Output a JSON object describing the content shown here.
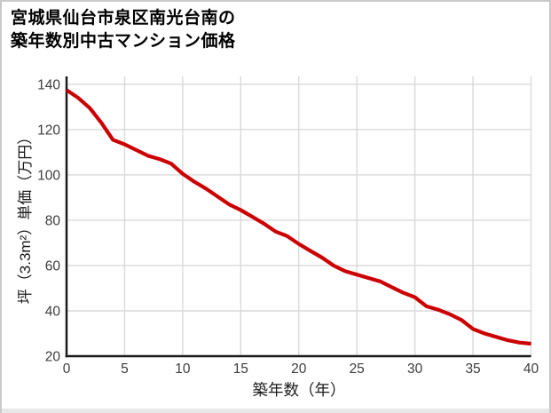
{
  "page": {
    "background": "#ffffff",
    "border_color": "#c9c9c9",
    "bottom_strip_color": "#e8e8e8"
  },
  "chart_data": {
    "type": "line",
    "title_lines": [
      "宮城県仙台市泉区南光台南の",
      "築年数別中古マンション価格"
    ],
    "title": "宮城県仙台市泉区南光台南の築年数別中古マンション価格",
    "xlabel": "築年数（年）",
    "ylabel": "坪（3.3m²）単価（万円）",
    "x": [
      0,
      1,
      2,
      3,
      4,
      5,
      6,
      7,
      8,
      9,
      10,
      11,
      12,
      13,
      14,
      15,
      16,
      17,
      18,
      19,
      20,
      21,
      22,
      23,
      24,
      25,
      26,
      27,
      28,
      29,
      30,
      31,
      32,
      33,
      34,
      35,
      36,
      37,
      38,
      39,
      40
    ],
    "series": [
      {
        "name": "築年数別中古マンション価格",
        "color": "#cc0000",
        "values": [
          137.5,
          134,
          129.5,
          123,
          115.5,
          113.5,
          111,
          108.5,
          107,
          105,
          100.5,
          97,
          94,
          90.5,
          87,
          84.5,
          81.5,
          78.5,
          75,
          73,
          69.5,
          66.5,
          63.5,
          60,
          57.5,
          56,
          54.5,
          53,
          50.5,
          48,
          46,
          42,
          40.5,
          38.5,
          36,
          32,
          30,
          28.5,
          27,
          26,
          25.5
        ]
      }
    ],
    "xlim": [
      0,
      40
    ],
    "ylim": [
      20,
      143.5
    ],
    "xticks": [
      0,
      5,
      10,
      15,
      20,
      25,
      30,
      35,
      40
    ],
    "yticks": [
      20,
      40,
      60,
      80,
      100,
      120,
      140
    ],
    "grid": true,
    "legend": "none",
    "grid_color": "#d9d9d9",
    "axis_color": "#1a1a1a",
    "tick_label_color": "#3d3d3d"
  }
}
